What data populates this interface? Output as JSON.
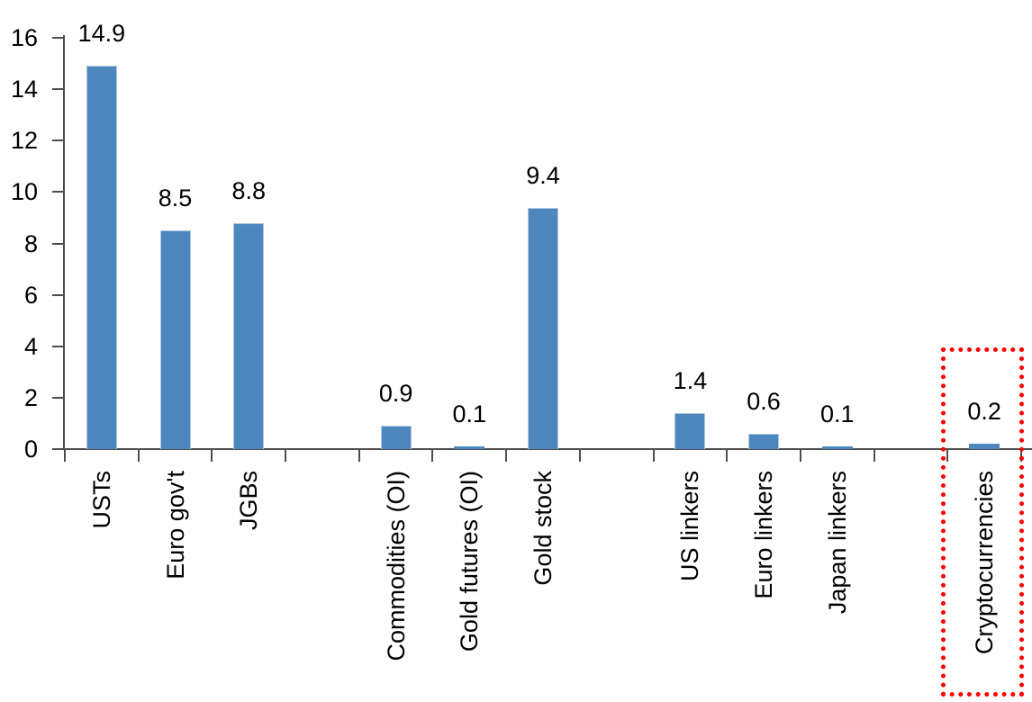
{
  "chart_data": {
    "type": "bar",
    "title": "",
    "categories": [
      "USTs",
      "Euro gov't",
      "JGBs",
      "Commodities (OI)",
      "Gold futures (OI)",
      "Gold stock",
      "US linkers",
      "Euro linkers",
      "Japan linkers",
      "Cryptocurrencies"
    ],
    "values": [
      14.9,
      8.5,
      8.8,
      0.9,
      0.1,
      9.4,
      1.4,
      0.6,
      0.1,
      0.2
    ],
    "data_labels": [
      "14.9",
      "8.5",
      "8.8",
      "0.9",
      "0.1",
      "9.4",
      "1.4",
      "0.6",
      "0.1",
      "0.2"
    ],
    "slots": [
      0,
      1,
      2,
      4,
      5,
      6,
      8,
      9,
      10,
      12
    ],
    "total_slots": 13,
    "groups_note": "bars grouped with one empty slot between groups: [USTs, Euro gov't, JGBs] | [Commodities (OI), Gold futures (OI), Gold stock] | [US linkers, Euro linkers, Japan linkers] | [Cryptocurrencies]",
    "xlabel": "",
    "ylabel": "",
    "ylim": [
      0,
      16
    ],
    "yticks": [
      0,
      2,
      4,
      6,
      8,
      10,
      12,
      14,
      16
    ],
    "grid": false,
    "legend": null,
    "bar_color": "#4e86be",
    "bar_edge_color": "#aec7e2",
    "axis_color": "#4d4d4d",
    "text_color": "#000000",
    "highlight": {
      "category": "Cryptocurrencies",
      "style": "red-dotted-rectangle",
      "color": "#ff0000"
    }
  }
}
